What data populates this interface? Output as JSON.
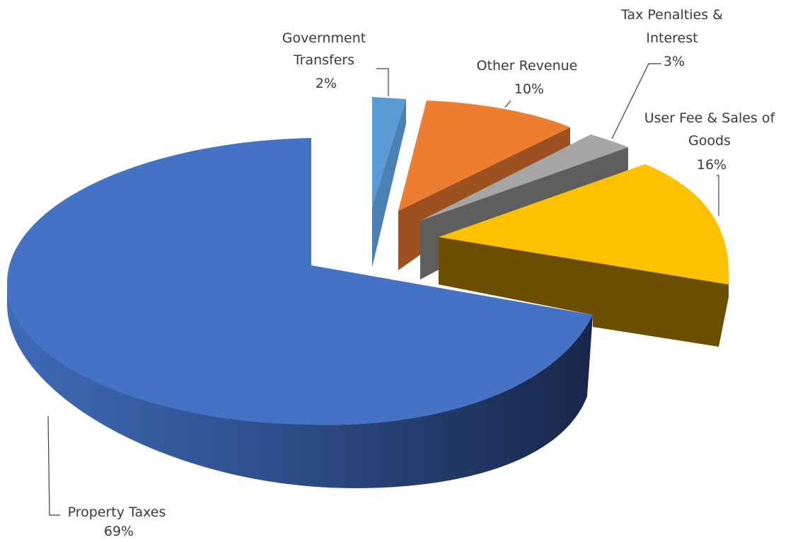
{
  "chart_data": {
    "type": "pie",
    "style": "3d-exploded",
    "slices": [
      {
        "label_lines": [
          "Property Taxes"
        ],
        "pct_label": "69%",
        "value": 69,
        "color": "#4472C4",
        "side_color_light": "#3C63AA",
        "side_color_dark": "#1B2A4A"
      },
      {
        "label_lines": [
          "Government",
          "Transfers"
        ],
        "pct_label": "2%",
        "value": 2,
        "color": "#5B9BD5",
        "side_color_light": "#4A80B2",
        "side_color_dark": "#3A6A96"
      },
      {
        "label_lines": [
          "Other Revenue"
        ],
        "pct_label": "10%",
        "value": 10,
        "color": "#ED7D31",
        "side_color_light": "#A85520",
        "side_color_dark": "#8E4718"
      },
      {
        "label_lines": [
          "Tax Penalties &",
          "Interest"
        ],
        "pct_label": "3%",
        "value": 3,
        "color": "#A5A5A5",
        "side_color_light": "#6A6A6A",
        "side_color_dark": "#5A5A5A"
      },
      {
        "label_lines": [
          "User Fee & Sales of",
          "Goods"
        ],
        "pct_label": "16%",
        "value": 16,
        "color": "#FFC000",
        "side_color_light": "#7A5A00",
        "side_color_dark": "#6B4E00"
      }
    ]
  }
}
